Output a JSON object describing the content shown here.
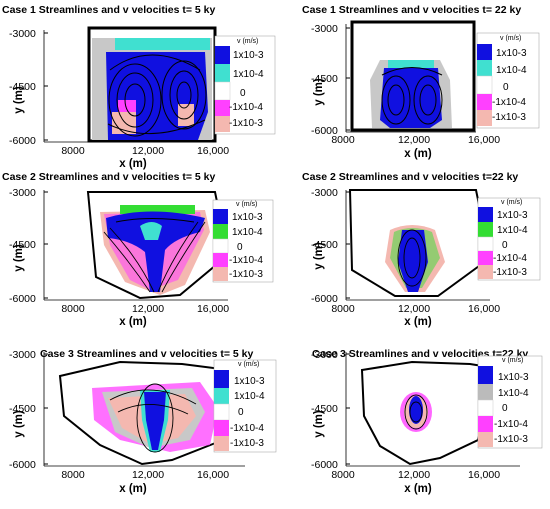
{
  "figure": {
    "panels": [
      {
        "title": "Case 1   Streamlines and v velocities  t= 5 ky",
        "case": "Case 1",
        "time": "5 ky",
        "yticks": [
          "-3000",
          "-4500",
          "-6000"
        ],
        "xticks": [
          "8000",
          "12,000",
          "16,000"
        ],
        "xlabel": "x (m)",
        "ylabel": "y (m)",
        "legend_title": "v (m/s)",
        "legend": [
          "1x10-3",
          "1x10-4",
          "0",
          "-1x10-4",
          "-1x10-3"
        ]
      },
      {
        "title": "Case 1   Streamlines and v velocities  t= 22 ky",
        "case": "Case 1",
        "time": "22 ky",
        "yticks": [
          "-3000",
          "-4500",
          "-6000"
        ],
        "xticks": [
          "8000",
          "12,000",
          "16,000"
        ],
        "xlabel": "x (m)",
        "ylabel": "y (m)",
        "legend_title": "v (m/s)",
        "legend": [
          "1x10-3",
          "1x10-4",
          "0",
          "-1x10-4",
          "-1x10-3"
        ]
      },
      {
        "title": "Case 2   Streamlines and v velocities  t= 5 ky",
        "case": "Case 2",
        "time": "5 ky",
        "yticks": [
          "-3000",
          "-4500",
          "-6000"
        ],
        "xticks": [
          "8000",
          "12,000",
          "16,000"
        ],
        "xlabel": "x (m)",
        "ylabel": "y (m)",
        "legend_title": "v (m/s)",
        "legend": [
          "1x10-3",
          "1x10-4",
          "0",
          "-1x10-4",
          "-1x10-3"
        ]
      },
      {
        "title": "Case 2   Streamlines and v velocities  t=22 ky",
        "case": "Case 2",
        "time": "22 ky",
        "yticks": [
          "-3000",
          "-4500",
          "-6000"
        ],
        "xticks": [
          "8000",
          "12,000",
          "16,000"
        ],
        "xlabel": "x (m)",
        "ylabel": "y (m)",
        "legend_title": "v (m/s)",
        "legend": [
          "1x10-3",
          "1x10-4",
          "0",
          "-1x10-4",
          "-1x10-3"
        ]
      },
      {
        "title": "Case 3   Streamlines and v velocities  t= 5 ky",
        "case": "Case 3",
        "time": "5 ky",
        "yticks": [
          "-3000",
          "-4500",
          "-6000"
        ],
        "xticks": [
          "8000",
          "12,000",
          "16,000"
        ],
        "xlabel": "x (m)",
        "ylabel": "y (m)",
        "legend_title": "v (m/s)",
        "legend": [
          "1x10-3",
          "1x10-4",
          "0",
          "-1x10-4",
          "-1x10-3"
        ]
      },
      {
        "title": "Case 3   Streamlines and v velocities  t=22 ky",
        "case": "Case 3",
        "time": "22 ky",
        "yticks": [
          "-3000",
          "-4500",
          "-6000"
        ],
        "xticks": [
          "8000",
          "12,000",
          "16,000"
        ],
        "xlabel": "x (m)",
        "ylabel": "y (m)",
        "legend_title": "v (m/s)",
        "legend": [
          "1x10-3",
          "1x10-4",
          "0",
          "-1x10-4",
          "-1x10-3"
        ]
      }
    ]
  },
  "colors": {
    "v_pos_high": "#1010e0",
    "v_pos_low": "#40e0d0",
    "v_pos_low_case2": "#33dd33",
    "v_pos_low_case3_22": "#bbbbbb",
    "v_zero": "#ffffff",
    "v_neg_low": "#ff40ff",
    "v_neg_high": "#f4b8b0",
    "grey_region": "#c8c8c8",
    "streamline": "#000000"
  },
  "chart_data": [
    {
      "type": "heatmap",
      "title": "Case 1   Streamlines and v velocities  t= 5 ky",
      "xlabel": "x (m)",
      "ylabel": "y (m)",
      "xlim": [
        6500,
        17500
      ],
      "ylim": [
        -6000,
        -2400
      ],
      "xticks": [
        8000,
        12000,
        16000
      ],
      "yticks": [
        -3000,
        -4500,
        -6000
      ],
      "colorbar": {
        "title": "v (m/s)",
        "levels": [
          "1x10-3",
          "1x10-4",
          "0",
          "-1x10-4",
          "-1x10-3"
        ]
      }
    },
    {
      "type": "heatmap",
      "title": "Case 1   Streamlines and v velocities  t= 22 ky",
      "xlabel": "x (m)",
      "ylabel": "y (m)",
      "xlim": [
        6500,
        17500
      ],
      "ylim": [
        -6000,
        -2400
      ],
      "xticks": [
        8000,
        12000,
        16000
      ],
      "yticks": [
        -3000,
        -4500,
        -6000
      ],
      "colorbar": {
        "title": "v (m/s)",
        "levels": [
          "1x10-3",
          "1x10-4",
          "0",
          "-1x10-4",
          "-1x10-3"
        ]
      }
    },
    {
      "type": "heatmap",
      "title": "Case 2   Streamlines and v velocities  t= 5 ky",
      "xlabel": "x (m)",
      "ylabel": "y (m)",
      "xlim": [
        6500,
        17500
      ],
      "ylim": [
        -6000,
        -2400
      ],
      "xticks": [
        8000,
        12000,
        16000
      ],
      "yticks": [
        -3000,
        -4500,
        -6000
      ],
      "colorbar": {
        "title": "v (m/s)",
        "levels": [
          "1x10-3",
          "1x10-4",
          "0",
          "-1x10-4",
          "-1x10-3"
        ]
      }
    },
    {
      "type": "heatmap",
      "title": "Case 2   Streamlines and v velocities  t=22 ky",
      "xlabel": "x (m)",
      "ylabel": "y (m)",
      "xlim": [
        6500,
        17500
      ],
      "ylim": [
        -6000,
        -2400
      ],
      "xticks": [
        8000,
        12000,
        16000
      ],
      "yticks": [
        -3000,
        -4500,
        -6000
      ],
      "colorbar": {
        "title": "v (m/s)",
        "levels": [
          "1x10-3",
          "1x10-4",
          "0",
          "-1x10-4",
          "-1x10-3"
        ]
      }
    },
    {
      "type": "heatmap",
      "title": "Case 3   Streamlines and v velocities  t= 5 ky",
      "xlabel": "x (m)",
      "ylabel": "y (m)",
      "xlim": [
        6500,
        17500
      ],
      "ylim": [
        -6000,
        -2400
      ],
      "xticks": [
        8000,
        12000,
        16000
      ],
      "yticks": [
        -3000,
        -4500,
        -6000
      ],
      "colorbar": {
        "title": "v (m/s)",
        "levels": [
          "1x10-3",
          "1x10-4",
          "0",
          "-1x10-4",
          "-1x10-3"
        ]
      }
    },
    {
      "type": "heatmap",
      "title": "Case 3   Streamlines and v velocities  t=22 ky",
      "xlabel": "x (m)",
      "ylabel": "y (m)",
      "xlim": [
        6500,
        17500
      ],
      "ylim": [
        -6000,
        -2400
      ],
      "xticks": [
        8000,
        12000,
        16000
      ],
      "yticks": [
        -3000,
        -4500,
        -6000
      ],
      "colorbar": {
        "title": "v (m/s)",
        "levels": [
          "1x10-3",
          "1x10-4",
          "0",
          "-1x10-4",
          "-1x10-3"
        ]
      }
    }
  ]
}
